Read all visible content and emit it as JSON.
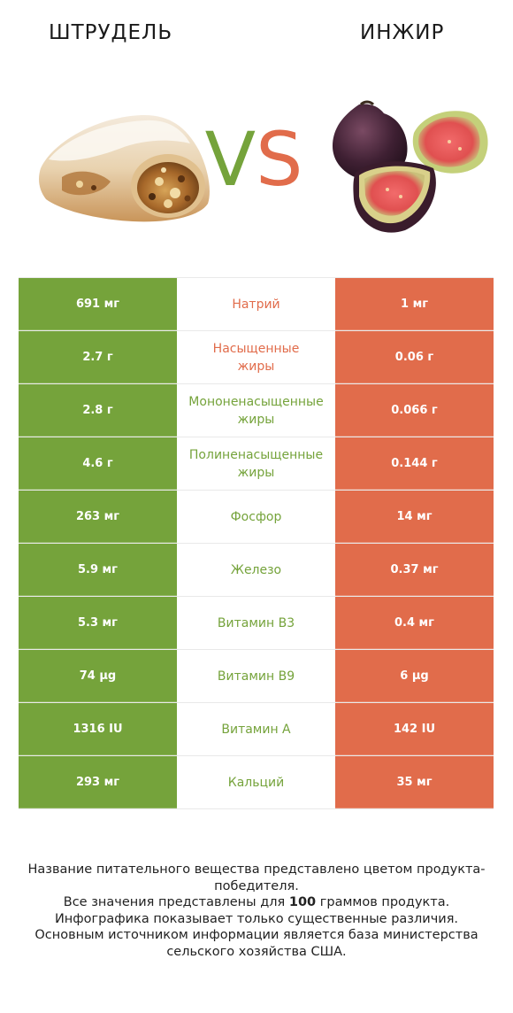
{
  "header": {
    "left_title": "ШТРУДЕЛЬ",
    "right_title": "ИНЖИР",
    "vs_v": "V",
    "vs_s": "S"
  },
  "colors": {
    "left_product": "#75a33b",
    "right_product": "#e16c4b"
  },
  "rows": [
    {
      "left": "691 мг",
      "nutrient": "Натрий",
      "right": "1 мг",
      "winner": "right"
    },
    {
      "left": "2.7 г",
      "nutrient": "Насыщенные жиры",
      "right": "0.06 г",
      "winner": "right"
    },
    {
      "left": "2.8 г",
      "nutrient": "Мононенасыщенные жиры",
      "right": "0.066 г",
      "winner": "left"
    },
    {
      "left": "4.6 г",
      "nutrient": "Полиненасыщенные жиры",
      "right": "0.144 г",
      "winner": "left"
    },
    {
      "left": "263 мг",
      "nutrient": "Фосфор",
      "right": "14 мг",
      "winner": "left"
    },
    {
      "left": "5.9 мг",
      "nutrient": "Железо",
      "right": "0.37 мг",
      "winner": "left"
    },
    {
      "left": "5.3 мг",
      "nutrient": "Витамин B3",
      "right": "0.4 мг",
      "winner": "left"
    },
    {
      "left": "74 µg",
      "nutrient": "Витамин B9",
      "right": "6 µg",
      "winner": "left"
    },
    {
      "left": "1316 IU",
      "nutrient": "Витамин A",
      "right": "142 IU",
      "winner": "left"
    },
    {
      "left": "293 мг",
      "nutrient": "Кальций",
      "right": "35 мг",
      "winner": "left"
    }
  ],
  "footer": {
    "line1": "Название питательного вещества представлено цветом продукта-победителя.",
    "line2_prefix": "Все значения представлены для ",
    "line2_bold": "100",
    "line2_suffix": " граммов продукта.",
    "line3": "Инфографика показывает только существенные различия.",
    "line4": "Основным источником информации является база министерства сельского хозяйства США."
  },
  "icons": {
    "left_image": "strudel-image",
    "right_image": "fig-image"
  }
}
